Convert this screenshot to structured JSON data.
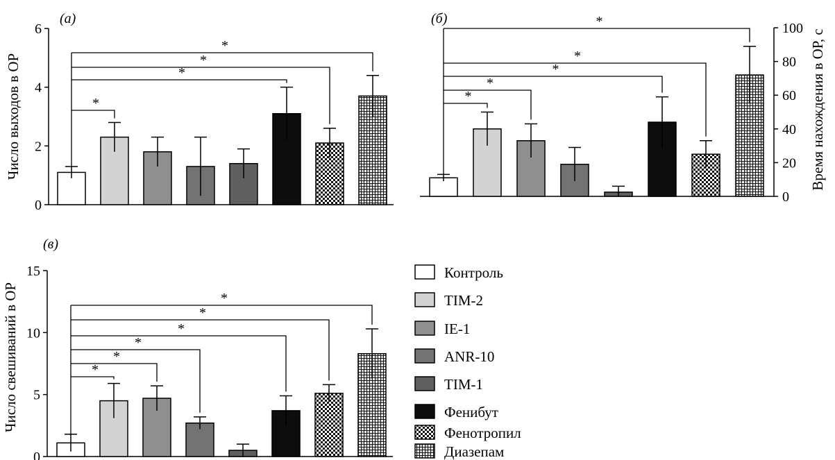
{
  "panel_letters": {
    "a": "(а)",
    "b": "(б)",
    "c": "(в)"
  },
  "significance_marker": "*",
  "legend": {
    "placement": "bottom-right",
    "items": [
      {
        "label": "Контроль",
        "pattern": "white"
      },
      {
        "label": "TIM-2",
        "pattern": "light-gray"
      },
      {
        "label": "IE-1",
        "pattern": "gray"
      },
      {
        "label": "ANR-10",
        "pattern": "dark-gray"
      },
      {
        "label": "TIM-1",
        "pattern": "darker-gray"
      },
      {
        "label": "Фенибут",
        "pattern": "black"
      },
      {
        "label": "Фенотропил",
        "pattern": "small-checker"
      },
      {
        "label": "Диазепам",
        "pattern": "large-checker"
      }
    ]
  },
  "colors": {
    "white": "#ffffff",
    "light-gray": "#d3d3d3",
    "gray": "#8f8f8f",
    "dark-gray": "#737373",
    "darker-gray": "#5f5f5f",
    "black": "#0d0d0d",
    "outline": "#000000"
  },
  "chart_data": [
    {
      "type": "bar",
      "panel": "a",
      "categories": [
        "Контроль",
        "TIM-2",
        "IE-1",
        "ANR-10",
        "TIM-1",
        "Фенибут",
        "Фенотропил",
        "Диазепам"
      ],
      "values": [
        1.1,
        2.3,
        1.8,
        1.3,
        1.4,
        3.1,
        2.1,
        3.7
      ],
      "errors": [
        0.2,
        0.5,
        0.5,
        1.0,
        0.5,
        0.9,
        0.5,
        0.7
      ],
      "ylabel": "Число выходов в ОР",
      "ylim": [
        0,
        6
      ],
      "yticks": [
        0,
        2,
        4,
        6
      ],
      "y_axis_side": "left",
      "grid": false,
      "significance_vs_control": [
        "TIM-2",
        "Фенибут",
        "Фенотропил",
        "Диазепам"
      ]
    },
    {
      "type": "bar",
      "panel": "b",
      "categories": [
        "Контроль",
        "TIM-2",
        "IE-1",
        "ANR-10",
        "TIM-1",
        "Фенибут",
        "Фенотропил",
        "Диазепам"
      ],
      "values": [
        11,
        40,
        33,
        19,
        2.5,
        44,
        25,
        72
      ],
      "errors": [
        2,
        10,
        10,
        10,
        3.5,
        15,
        8,
        17
      ],
      "ylabel": "Время нахождения в ОР, с",
      "ylim": [
        0,
        100
      ],
      "yticks": [
        0,
        20,
        40,
        60,
        80,
        100
      ],
      "y_axis_side": "right",
      "grid": false,
      "significance_vs_control": [
        "TIM-2",
        "IE-1",
        "Фенибут",
        "Фенотропил",
        "Диазепам"
      ]
    },
    {
      "type": "bar",
      "panel": "c",
      "categories": [
        "Контроль",
        "TIM-2",
        "IE-1",
        "ANR-10",
        "TIM-1",
        "Фенибут",
        "Фенотропил",
        "Диазепам"
      ],
      "values": [
        1.1,
        4.5,
        4.7,
        2.7,
        0.5,
        3.7,
        5.1,
        8.3
      ],
      "errors": [
        0.7,
        1.4,
        1.0,
        0.5,
        0.5,
        1.2,
        0.7,
        2.0
      ],
      "ylabel": "Число свешиваний в ОР",
      "ylim": [
        0,
        15
      ],
      "yticks": [
        0,
        5,
        10,
        15
      ],
      "y_axis_side": "left",
      "grid": false,
      "significance_vs_control": [
        "TIM-2",
        "IE-1",
        "ANR-10",
        "Фенибут",
        "Фенотропил",
        "Диазепам"
      ]
    }
  ]
}
